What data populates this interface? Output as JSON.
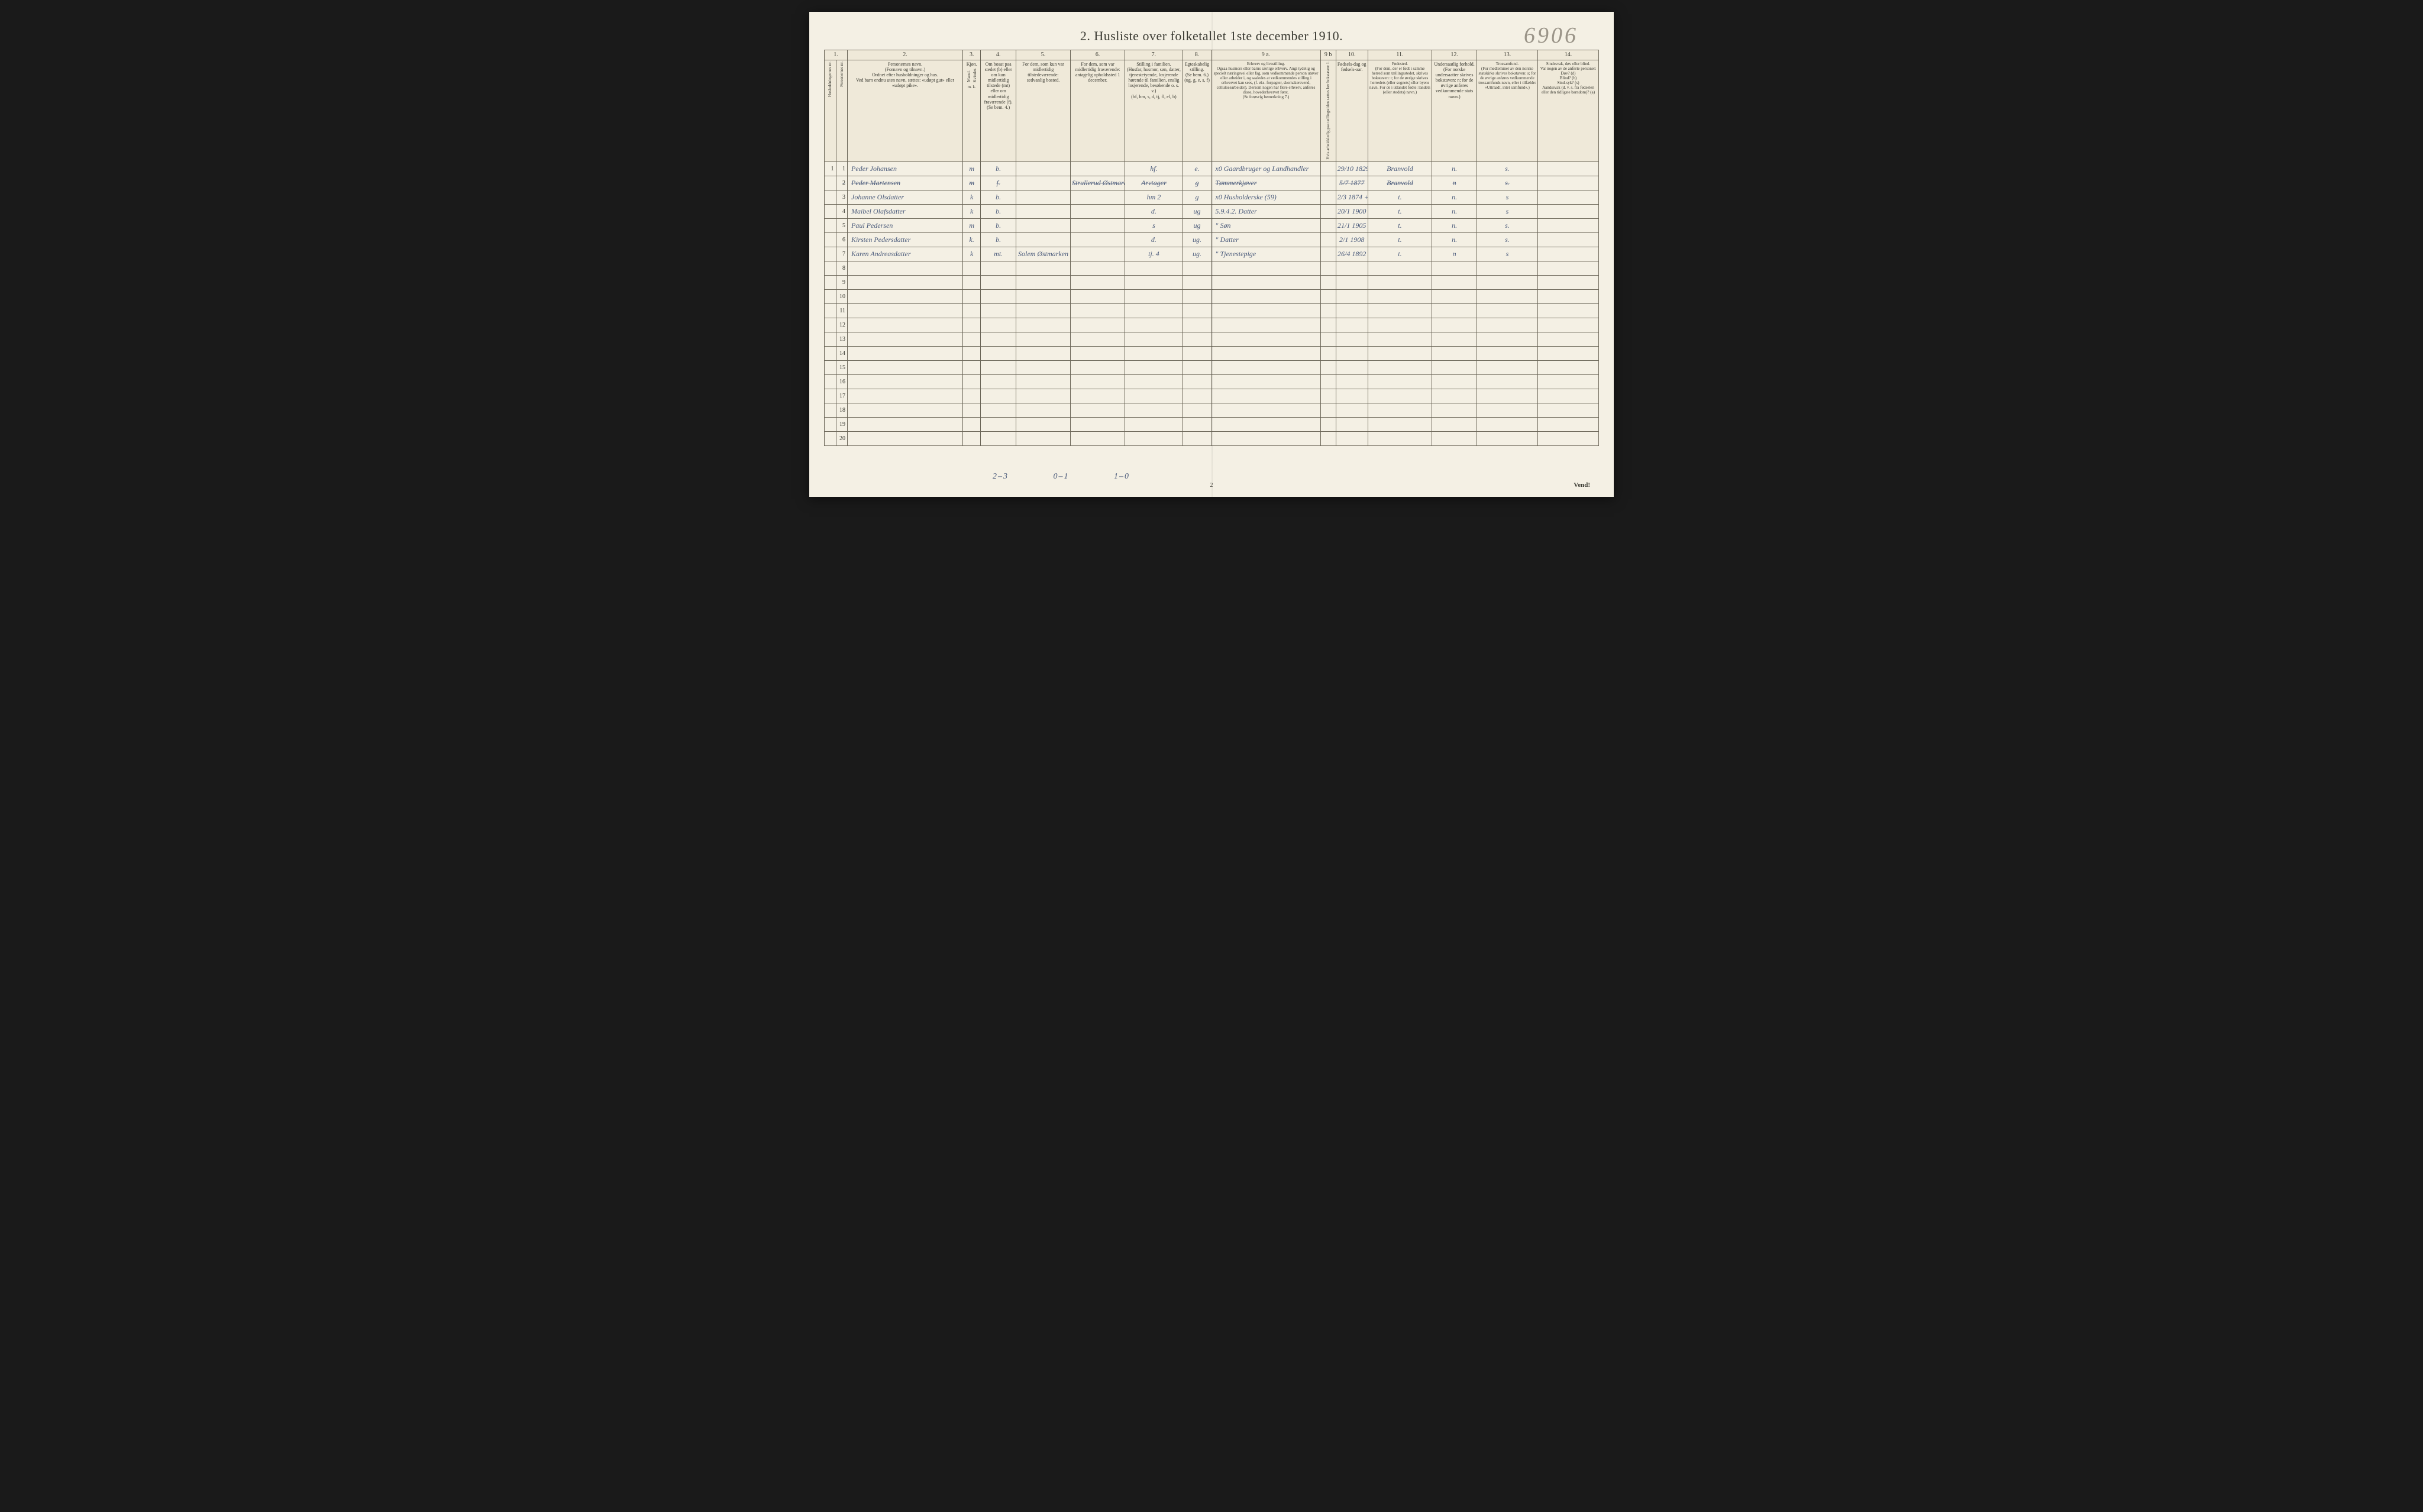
{
  "corner_number": "6906",
  "title": "2.  Husliste over folketallet 1ste december 1910.",
  "page_number": "2",
  "vend": "Vend!",
  "col_numbers": [
    "1.",
    "",
    "2.",
    "3.",
    "4.",
    "5.",
    "6.",
    "7.",
    "8.",
    "9 a.",
    "9 b",
    "10.",
    "11.",
    "12.",
    "13.",
    "14."
  ],
  "headers": {
    "c1": "Husholdningernes nr.",
    "c1b": "Personernes nr.",
    "c2": "Personernes navn.\n(Fornavn og tilnavn.)\nOrdnet efter husholdninger og hus.\nVed barn endnu uten navn, sættes: «udøpt gut» eller «udøpt pike».",
    "c3": "Kjøn.",
    "c3a": "Mænd.",
    "c3b": "Kvinder.",
    "c3sub": "m.  k.",
    "c4": "Om bosat paa stedet (b) eller om kun midlertidig tilstede (mt) eller om midlertidig fraværende (f).\n(Se bem. 4.)",
    "c5": "For dem, som kun var midlertidig tilstedeværende:\nsedvanlig bosted.",
    "c6": "For dem, som var midlertidig fraværende:\nantagelig opholdssted 1 december.",
    "c7": "Stilling i familien.\n(Husfar, husmor, søn, datter, tjenestetyende, losjerende hørende til familien, enslig losjerende, besøkende o. s. v.)\n(hf, hm, s, d, tj, fl, el, b)",
    "c8": "Egteskabelig stilling.\n(Se bem. 6.)\n(ug, g, e, s, f)",
    "c9a": "Erhverv og livsstilling.\nOgsaa husmors eller barns særlige erhverv. Angi tydelig og specielt næringsvei eller fag, som vedkommende person utøver eller arbeider i, og saaledes at vedkommendes stilling i erhvervet kan sees, (f. eks. forpagter, skomakersvend, cellulosearbeider). Dersom nogen har flere erhverv, anføres disse, hovederhvervet først.\n(Se forøvrig bemerkning 7.)",
    "c9b": "Hvis arbeidsledig paa tællingstiden sættes her bokstaven: l.",
    "c10": "Fødsels-dag og fødsels-aar.",
    "c11": "Fødested.\n(For dem, der er født i samme herred som tællingsstedet, skrives bokstaven: t; for de øvrige skrives herredets (eller sognets) eller byens navn. For de i utlandet fødte: landets (eller stedets) navn.)",
    "c12": "Undersaatlig forhold.\n(For norske undersaatter skrives bokstaven: n; for de øvrige anføres vedkommende stats navn.)",
    "c13": "Trossamfund.\n(For medlemmer av den norske statskirke skrives bokstaven: s; for de øvrige anføres vedkommende trossamfunds navn, eller i tilfælde: «Uttraadt, intet samfund».)",
    "c14": "Sindssvak, døv eller blind.\nVar nogen av de anførte personer:\nDøv? (d)\nBlind? (b)\nSind-syk? (s)\nAandssvak (d. v. s. fra fødselen eller den tidligste barndom)? (a)"
  },
  "rows": [
    {
      "hh": "1",
      "pn": "1",
      "name": "Peder Johansen",
      "sex": "m",
      "res": "b.",
      "away_usual": "",
      "away_dec": "",
      "fam": "hf.",
      "mar": "e.",
      "occ": "x0 Gaardbruger og Landhandler",
      "led": "",
      "birth": "29/10 1829",
      "place": "Branvold",
      "nat": "n.",
      "rel": "s.",
      "dis": ""
    },
    {
      "hh": "",
      "pn": "2",
      "name": "Peder Martensen",
      "sex": "m",
      "res": "f.",
      "away_usual": "",
      "away_dec": "Strullerud Østmarken",
      "fam": "Arvtager",
      "mar": "g",
      "occ": "Tømmerkjøver",
      "led": "",
      "birth": "5/7 1877",
      "place": "Branvold",
      "nat": "n",
      "rel": "s.",
      "dis": "",
      "strike": true
    },
    {
      "hh": "",
      "pn": "3",
      "name": "Johanne Olsdatter",
      "sex": "k",
      "res": "b.",
      "away_usual": "",
      "away_dec": "",
      "fam": "hm        2",
      "mar": "g",
      "occ": "x0 Husholderske (59)",
      "led": "",
      "birth": "2/3 1874 +1",
      "place": "t.",
      "nat": "n.",
      "rel": "s",
      "dis": ""
    },
    {
      "hh": "",
      "pn": "4",
      "name": "Maibel Olafsdatter",
      "sex": "k",
      "res": "b.",
      "away_usual": "",
      "away_dec": "",
      "fam": "d.",
      "mar": "ug",
      "occ": "5.9.4.2. Datter",
      "led": "",
      "birth": "20/1 1900",
      "place": "t.",
      "nat": "n.",
      "rel": "s",
      "dis": ""
    },
    {
      "hh": "",
      "pn": "5",
      "name": "Paul Pedersen",
      "sex": "m",
      "res": "b.",
      "away_usual": "",
      "away_dec": "",
      "fam": "s",
      "mar": "ug",
      "occ": "\"  Søn",
      "led": "",
      "birth": "21/1 1905",
      "place": "t.",
      "nat": "n.",
      "rel": "s.",
      "dis": ""
    },
    {
      "hh": "",
      "pn": "6",
      "name": "Kirsten Pedersdatter",
      "sex": "k.",
      "res": "b.",
      "away_usual": "",
      "away_dec": "",
      "fam": "d.",
      "mar": "ug.",
      "occ": "\"  Datter",
      "led": "",
      "birth": "2/1 1908",
      "place": "t.",
      "nat": "n.",
      "rel": "s.",
      "dis": ""
    },
    {
      "hh": "",
      "pn": "7",
      "name": "Karen Andreasdatter",
      "sex": "k",
      "res": "mt.",
      "away_usual": "Solem Østmarken",
      "away_dec": "",
      "fam": "tj.       4",
      "mar": "ug.",
      "occ": "\"  Tjenestepige",
      "led": "",
      "birth": "26/4 1892",
      "place": "t.",
      "nat": "n",
      "rel": "s",
      "dis": ""
    }
  ],
  "empty_rows": [
    8,
    9,
    10,
    11,
    12,
    13,
    14,
    15,
    16,
    17,
    18,
    19,
    20
  ],
  "tallies": [
    "2–3",
    "0–1",
    "1–0"
  ]
}
